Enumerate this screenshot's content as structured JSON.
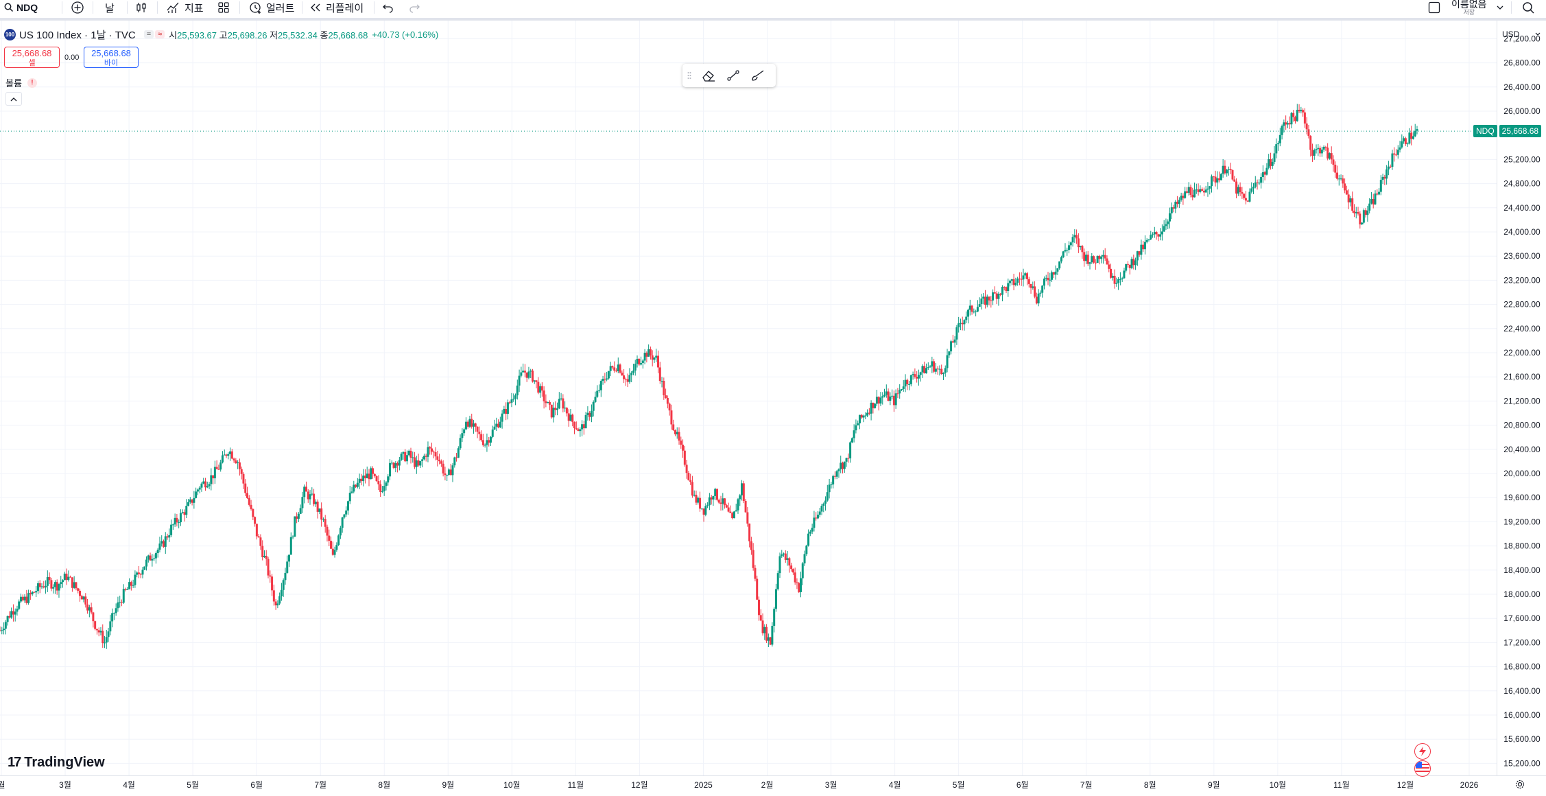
{
  "toolbar": {
    "symbol": "NDQ",
    "interval": "날",
    "indicators_label": "지표",
    "alert_label": "얼러트",
    "replay_label": "리플레이",
    "layout_name": "이름없음",
    "layout_status": "저장"
  },
  "legend": {
    "title": "US 100 Index · 1날 · TVC",
    "logo_text": "100",
    "open_key": "시",
    "open": "25,593.67",
    "high_key": "고",
    "high": "25,698.26",
    "low_key": "저",
    "low": "25,532.34",
    "close_key": "종",
    "close": "25,668.68",
    "change": "+40.73 (+0.16%)"
  },
  "trade": {
    "sell_price": "25,668.68",
    "sell_label": "셀",
    "spread": "0.00",
    "buy_price": "25,668.68",
    "buy_label": "바이"
  },
  "volume": {
    "label": "볼륨",
    "warning": "!"
  },
  "price_axis": {
    "currency": "USD",
    "last_symbol": "NDQ",
    "last_price": "25,668.68"
  },
  "brand": {
    "name": "TradingView"
  },
  "colors": {
    "up": "#089981",
    "down": "#f23645",
    "grid": "#f0f3fa",
    "text": "#131722"
  },
  "chart_data": {
    "type": "candlestick",
    "title": "US 100 Index · 1날 · TVC",
    "x_ticks": [
      "월",
      "3월",
      "4월",
      "5월",
      "6월",
      "7월",
      "8월",
      "9월",
      "10월",
      "11월",
      "12월",
      "2025",
      "2월",
      "3월",
      "4월",
      "5월",
      "6월",
      "7월",
      "8월",
      "9월",
      "10월",
      "11월",
      "12월",
      "2026"
    ],
    "y_ticks": [
      "15,200.00",
      "15,600.00",
      "16,000.00",
      "16,400.00",
      "16,800.00",
      "17,200.00",
      "17,600.00",
      "18,000.00",
      "18,400.00",
      "18,800.00",
      "19,200.00",
      "19,600.00",
      "20,000.00",
      "20,400.00",
      "20,800.00",
      "21,200.00",
      "21,600.00",
      "22,000.00",
      "22,400.00",
      "22,800.00",
      "23,200.00",
      "23,600.00",
      "24,000.00",
      "24,400.00",
      "24,800.00",
      "25,200.00",
      "26,000.00",
      "26,400.00",
      "26,800.00",
      "27,200.00"
    ],
    "ylim": [
      15000,
      27500
    ],
    "last_price": 25668.68,
    "closes": [
      [
        0,
        17400
      ],
      [
        8,
        17700
      ],
      [
        14,
        17850
      ],
      [
        21,
        17950
      ],
      [
        28,
        18100
      ],
      [
        35,
        18200
      ],
      [
        42,
        18150
      ],
      [
        49,
        18300
      ],
      [
        56,
        18100
      ],
      [
        63,
        17900
      ],
      [
        70,
        17500
      ],
      [
        77,
        17200
      ],
      [
        84,
        17700
      ],
      [
        91,
        18000
      ],
      [
        98,
        18200
      ],
      [
        105,
        18450
      ],
      [
        112,
        18650
      ],
      [
        119,
        18800
      ],
      [
        126,
        19100
      ],
      [
        133,
        19300
      ],
      [
        140,
        19500
      ],
      [
        147,
        19800
      ],
      [
        154,
        19900
      ],
      [
        161,
        20100
      ],
      [
        168,
        20400
      ],
      [
        175,
        20200
      ],
      [
        182,
        19600
      ],
      [
        189,
        19000
      ],
      [
        196,
        18500
      ],
      [
        203,
        17800
      ],
      [
        210,
        18400
      ],
      [
        217,
        19200
      ],
      [
        224,
        19700
      ],
      [
        231,
        19550
      ],
      [
        238,
        19200
      ],
      [
        245,
        18600
      ],
      [
        252,
        19300
      ],
      [
        259,
        19700
      ],
      [
        266,
        19900
      ],
      [
        273,
        20000
      ],
      [
        280,
        19700
      ],
      [
        287,
        20100
      ],
      [
        294,
        20250
      ],
      [
        301,
        20300
      ],
      [
        308,
        20100
      ],
      [
        315,
        20400
      ],
      [
        322,
        20300
      ],
      [
        329,
        19900
      ],
      [
        336,
        20300
      ],
      [
        343,
        20900
      ],
      [
        350,
        20700
      ],
      [
        357,
        20500
      ],
      [
        364,
        20750
      ],
      [
        371,
        21000
      ],
      [
        378,
        21300
      ],
      [
        385,
        21700
      ],
      [
        392,
        21600
      ],
      [
        399,
        21300
      ],
      [
        406,
        21000
      ],
      [
        413,
        21200
      ],
      [
        420,
        20900
      ],
      [
        427,
        20700
      ],
      [
        434,
        21000
      ],
      [
        441,
        21400
      ],
      [
        448,
        21700
      ],
      [
        455,
        21800
      ],
      [
        462,
        21500
      ],
      [
        469,
        21850
      ],
      [
        476,
        22000
      ],
      [
        483,
        21900
      ],
      [
        490,
        21200
      ],
      [
        497,
        20700
      ],
      [
        504,
        20200
      ],
      [
        511,
        19600
      ],
      [
        518,
        19400
      ],
      [
        525,
        19700
      ],
      [
        532,
        19500
      ],
      [
        539,
        19200
      ],
      [
        546,
        19800
      ],
      [
        553,
        18700
      ],
      [
        560,
        17500
      ],
      [
        567,
        17200
      ],
      [
        574,
        18700
      ],
      [
        581,
        18500
      ],
      [
        588,
        18100
      ],
      [
        595,
        19000
      ],
      [
        602,
        19300
      ],
      [
        609,
        19700
      ],
      [
        616,
        20100
      ],
      [
        623,
        20200
      ],
      [
        630,
        20800
      ],
      [
        637,
        21000
      ],
      [
        644,
        21200
      ],
      [
        651,
        21300
      ],
      [
        658,
        21200
      ],
      [
        665,
        21500
      ],
      [
        672,
        21600
      ],
      [
        679,
        21700
      ],
      [
        686,
        21800
      ],
      [
        693,
        21650
      ],
      [
        700,
        22100
      ],
      [
        707,
        22500
      ],
      [
        714,
        22700
      ],
      [
        721,
        22800
      ],
      [
        728,
        22900
      ],
      [
        735,
        23000
      ],
      [
        742,
        23100
      ],
      [
        749,
        23200
      ],
      [
        756,
        23300
      ],
      [
        763,
        22900
      ],
      [
        770,
        23200
      ],
      [
        777,
        23400
      ],
      [
        784,
        23700
      ],
      [
        791,
        23900
      ],
      [
        798,
        23600
      ],
      [
        805,
        23500
      ],
      [
        812,
        23700
      ],
      [
        819,
        23200
      ],
      [
        826,
        23300
      ],
      [
        833,
        23500
      ],
      [
        840,
        23700
      ],
      [
        847,
        23900
      ],
      [
        854,
        24000
      ],
      [
        861,
        24300
      ],
      [
        868,
        24500
      ],
      [
        875,
        24700
      ],
      [
        882,
        24600
      ],
      [
        889,
        24800
      ],
      [
        896,
        24900
      ],
      [
        903,
        25100
      ],
      [
        910,
        24700
      ],
      [
        917,
        24500
      ],
      [
        924,
        24800
      ],
      [
        931,
        25000
      ],
      [
        938,
        25300
      ],
      [
        945,
        25800
      ],
      [
        952,
        25900
      ],
      [
        959,
        26000
      ],
      [
        966,
        25300
      ],
      [
        973,
        25400
      ],
      [
        980,
        25200
      ],
      [
        987,
        24800
      ],
      [
        994,
        24500
      ],
      [
        1001,
        24200
      ],
      [
        1008,
        24400
      ],
      [
        1015,
        24700
      ],
      [
        1022,
        25100
      ],
      [
        1029,
        25400
      ],
      [
        1036,
        25550
      ],
      [
        1043,
        25668
      ]
    ]
  }
}
